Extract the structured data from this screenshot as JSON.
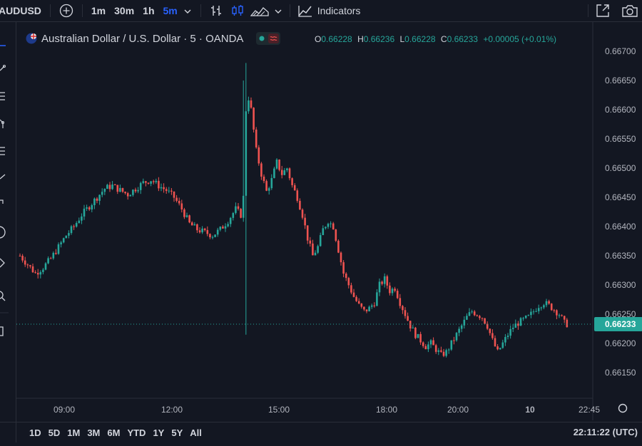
{
  "toolbar": {
    "symbol": "AUDUSD",
    "intervals": [
      "1m",
      "30m",
      "1h",
      "5m"
    ],
    "active_interval": "5m",
    "indicators_label": "Indicators"
  },
  "legend": {
    "title": "Australian Dollar / U.S. Dollar · 5 · OANDA",
    "o_label": "O",
    "o": "0.66228",
    "h_label": "H",
    "h": "0.66236",
    "l_label": "L",
    "l": "0.66228",
    "c_label": "C",
    "c": "0.66233",
    "change": "+0.00005 (+0.01%)"
  },
  "bottom": {
    "ranges": [
      "1D",
      "5D",
      "1M",
      "3M",
      "6M",
      "YTD",
      "1Y",
      "5Y",
      "All"
    ],
    "clock": "22:11:22 (UTC)"
  },
  "colors": {
    "up": "#26a69a",
    "down": "#ef5350",
    "background": "#131722",
    "price_badge": "#26a69a"
  },
  "chart_data": {
    "type": "candlestick",
    "title": "Australian Dollar / U.S. Dollar · 5 · OANDA",
    "y_ticks": [
      "0.66700",
      "0.66650",
      "0.66600",
      "0.66550",
      "0.66500",
      "0.66450",
      "0.66400",
      "0.66350",
      "0.66300",
      "0.66250",
      "0.66200",
      "0.66150"
    ],
    "ylim": [
      0.6612,
      0.6672
    ],
    "x_ticks": [
      "09:00",
      "12:00",
      "15:00",
      "18:00",
      "20:00",
      "10",
      "22:45"
    ],
    "last_price": "0.66233",
    "close_path": [
      [
        0,
        0.6635
      ],
      [
        3,
        0.66335
      ],
      [
        6,
        0.6632
      ],
      [
        9,
        0.6633
      ],
      [
        12,
        0.66345
      ],
      [
        15,
        0.66365
      ],
      [
        18,
        0.66385
      ],
      [
        21,
        0.664
      ],
      [
        24,
        0.6642
      ],
      [
        27,
        0.66435
      ],
      [
        30,
        0.6645
      ],
      [
        33,
        0.66465
      ],
      [
        36,
        0.6647
      ],
      [
        39,
        0.66462
      ],
      [
        42,
        0.66455
      ],
      [
        45,
        0.66465
      ],
      [
        48,
        0.66475
      ],
      [
        51,
        0.6648
      ],
      [
        54,
        0.6647
      ],
      [
        57,
        0.66462
      ],
      [
        60,
        0.6645
      ],
      [
        63,
        0.6643
      ],
      [
        66,
        0.66405
      ],
      [
        69,
        0.66395
      ],
      [
        72,
        0.6639
      ],
      [
        75,
        0.66385
      ],
      [
        78,
        0.66395
      ],
      [
        81,
        0.6641
      ],
      [
        84,
        0.6643
      ],
      [
        86,
        0.6642
      ],
      [
        87,
        0.6645
      ],
      [
        88,
        0.666
      ],
      [
        89,
        0.6662
      ],
      [
        90,
        0.666
      ],
      [
        92,
        0.6653
      ],
      [
        94,
        0.6649
      ],
      [
        96,
        0.6646
      ],
      [
        98,
        0.6648
      ],
      [
        100,
        0.6651
      ],
      [
        102,
        0.6649
      ],
      [
        104,
        0.665
      ],
      [
        106,
        0.6647
      ],
      [
        108,
        0.6645
      ],
      [
        110,
        0.6642
      ],
      [
        112,
        0.6638
      ],
      [
        114,
        0.6635
      ],
      [
        116,
        0.66365
      ],
      [
        118,
        0.66395
      ],
      [
        120,
        0.6641
      ],
      [
        122,
        0.664
      ],
      [
        124,
        0.6636
      ],
      [
        126,
        0.6632
      ],
      [
        128,
        0.663
      ],
      [
        130,
        0.6628
      ],
      [
        132,
        0.66265
      ],
      [
        134,
        0.66255
      ],
      [
        136,
        0.6626
      ],
      [
        138,
        0.6627
      ],
      [
        140,
        0.663
      ],
      [
        142,
        0.6631
      ],
      [
        144,
        0.6629
      ],
      [
        146,
        0.66295
      ],
      [
        148,
        0.6627
      ],
      [
        150,
        0.6625
      ],
      [
        152,
        0.6623
      ],
      [
        154,
        0.66215
      ],
      [
        156,
        0.66205
      ],
      [
        158,
        0.66195
      ],
      [
        160,
        0.662
      ],
      [
        162,
        0.6619
      ],
      [
        164,
        0.6618
      ],
      [
        166,
        0.66185
      ],
      [
        168,
        0.662
      ],
      [
        170,
        0.66215
      ],
      [
        172,
        0.6623
      ],
      [
        174,
        0.66245
      ],
      [
        176,
        0.66255
      ],
      [
        178,
        0.6625
      ],
      [
        180,
        0.66245
      ],
      [
        182,
        0.6623
      ],
      [
        184,
        0.66205
      ],
      [
        186,
        0.66185
      ],
      [
        188,
        0.662
      ],
      [
        190,
        0.66215
      ],
      [
        192,
        0.66228
      ],
      [
        194,
        0.66235
      ],
      [
        196,
        0.6624
      ],
      [
        198,
        0.66245
      ],
      [
        200,
        0.66255
      ],
      [
        202,
        0.66265
      ],
      [
        204,
        0.6627
      ],
      [
        206,
        0.66265
      ],
      [
        208,
        0.66258
      ],
      [
        210,
        0.6625
      ],
      [
        212,
        0.66235
      ],
      [
        213,
        0.66233
      ]
    ]
  }
}
